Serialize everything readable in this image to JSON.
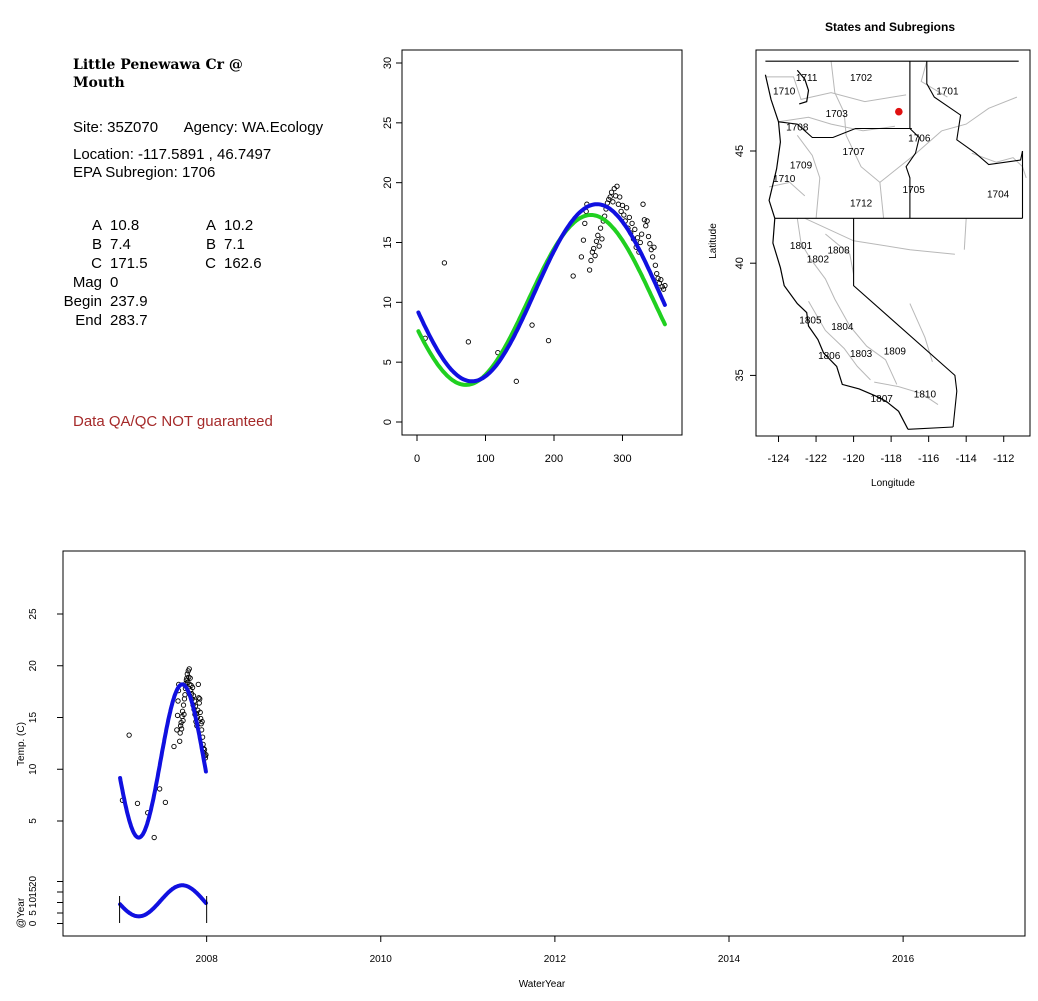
{
  "site": {
    "title_line1": "Little Penewawa Cr @",
    "title_line2": "Mouth",
    "site": "Site: 35Z070",
    "agency": "Agency: WA.Ecology",
    "location": "Location: -117.5891 , 46.7497",
    "subregion": "EPA Subregion: 1706",
    "params": [
      {
        "k1": "A",
        "v1": "10.8",
        "k2": "A",
        "v2": "10.2"
      },
      {
        "k1": "B",
        "v1": "7.4",
        "k2": "B",
        "v2": "7.1"
      },
      {
        "k1": "C",
        "v1": "171.5",
        "k2": "C",
        "v2": "162.6"
      },
      {
        "k1": "Mag",
        "v1": "0",
        "k2": "",
        "v2": ""
      },
      {
        "k1": "Begin",
        "v1": "237.9",
        "k2": "",
        "v2": ""
      },
      {
        "k1": "End",
        "v1": "283.7",
        "k2": "",
        "v2": ""
      }
    ],
    "qa_note": "Data QA/QC NOT guaranteed"
  },
  "colors": {
    "blue": "#1010e0",
    "green": "#20d020",
    "red": "#e01010",
    "qa": "#a52a2a",
    "state_line": "#000000",
    "subregion_line": "#b8b8b8"
  },
  "chart_data": [
    {
      "type": "scatter",
      "name_hint": "day-of-year",
      "xlim": [
        0,
        365
      ],
      "ylim": [
        0,
        30
      ],
      "x_ticks": [
        0,
        100,
        200,
        300
      ],
      "y_ticks": [
        0,
        5,
        10,
        15,
        20,
        25,
        30
      ],
      "curves": [
        {
          "color": "green",
          "A": 10.2,
          "B": 7.1,
          "C": 162.6
        },
        {
          "color": "blue",
          "A": 10.8,
          "B": 7.4,
          "C": 171.5
        }
      ],
      "points": [
        [
          12,
          7.0
        ],
        [
          40,
          13.3
        ],
        [
          75,
          6.7
        ],
        [
          118,
          5.8
        ],
        [
          145,
          3.4
        ],
        [
          168,
          8.1
        ],
        [
          192,
          6.8
        ],
        [
          228,
          12.2
        ],
        [
          240,
          13.8
        ],
        [
          243,
          15.2
        ],
        [
          245,
          16.6
        ],
        [
          247,
          17.6
        ],
        [
          248,
          18.2
        ],
        [
          252,
          12.7
        ],
        [
          254,
          13.5
        ],
        [
          256,
          14.2
        ],
        [
          258,
          14.5
        ],
        [
          260,
          13.9
        ],
        [
          262,
          15.1
        ],
        [
          264,
          15.6
        ],
        [
          266,
          14.7
        ],
        [
          268,
          16.2
        ],
        [
          270,
          15.3
        ],
        [
          272,
          16.8
        ],
        [
          274,
          17.2
        ],
        [
          276,
          17.8
        ],
        [
          278,
          18.3
        ],
        [
          280,
          18.6
        ],
        [
          282,
          18.8
        ],
        [
          284,
          19.2
        ],
        [
          286,
          18.4
        ],
        [
          288,
          19.5
        ],
        [
          290,
          18.9
        ],
        [
          292,
          19.7
        ],
        [
          294,
          18.2
        ],
        [
          296,
          18.8
        ],
        [
          298,
          17.6
        ],
        [
          300,
          18.1
        ],
        [
          302,
          17.3
        ],
        [
          304,
          16.8
        ],
        [
          306,
          17.9
        ],
        [
          308,
          16.2
        ],
        [
          310,
          17.1
        ],
        [
          312,
          15.8
        ],
        [
          314,
          16.6
        ],
        [
          316,
          15.3
        ],
        [
          318,
          16.1
        ],
        [
          320,
          14.6
        ],
        [
          322,
          15.4
        ],
        [
          324,
          14.2
        ],
        [
          326,
          15.0
        ],
        [
          328,
          15.7
        ],
        [
          330,
          18.2
        ],
        [
          332,
          16.9
        ],
        [
          334,
          16.4
        ],
        [
          336,
          16.8
        ],
        [
          338,
          15.5
        ],
        [
          340,
          14.9
        ],
        [
          342,
          14.4
        ],
        [
          344,
          13.8
        ],
        [
          346,
          14.6
        ],
        [
          348,
          13.1
        ],
        [
          350,
          12.4
        ],
        [
          352,
          12.0
        ],
        [
          354,
          11.6
        ],
        [
          356,
          11.9
        ],
        [
          358,
          11.3
        ],
        [
          360,
          11.1
        ],
        [
          362,
          11.4
        ]
      ]
    },
    {
      "type": "map",
      "title": "States and Subregions",
      "xlabel": "Longitude",
      "ylabel": "Latitude",
      "xlim": [
        -125.2,
        -110.6
      ],
      "ylim": [
        32.3,
        49.5
      ],
      "x_ticks": [
        -124,
        -122,
        -120,
        -118,
        -116,
        -114,
        -112
      ],
      "y_ticks": [
        35,
        40,
        45
      ],
      "site_point": [
        -117.5891,
        46.7497
      ],
      "region_labels": [
        {
          "label": "1711",
          "lon": -122.5,
          "lat": 48.3
        },
        {
          "label": "1710",
          "lon": -123.7,
          "lat": 47.7
        },
        {
          "label": "1702",
          "lon": -119.6,
          "lat": 48.3
        },
        {
          "label": "1701",
          "lon": -115.0,
          "lat": 47.7
        },
        {
          "label": "1703",
          "lon": -120.9,
          "lat": 46.7
        },
        {
          "label": "1708",
          "lon": -123.0,
          "lat": 46.1
        },
        {
          "label": "1706",
          "lon": -116.5,
          "lat": 45.6
        },
        {
          "label": "1707",
          "lon": -120.0,
          "lat": 45.0
        },
        {
          "label": "1709",
          "lon": -122.8,
          "lat": 44.4
        },
        {
          "label": "1710",
          "lon": -123.7,
          "lat": 43.8
        },
        {
          "label": "1705",
          "lon": -116.8,
          "lat": 43.3
        },
        {
          "label": "1704",
          "lon": -112.3,
          "lat": 43.1
        },
        {
          "label": "1712",
          "lon": -119.6,
          "lat": 42.7
        },
        {
          "label": "1801",
          "lon": -122.8,
          "lat": 40.8
        },
        {
          "label": "1808",
          "lon": -120.8,
          "lat": 40.6
        },
        {
          "label": "1802",
          "lon": -121.9,
          "lat": 40.2
        },
        {
          "label": "1805",
          "lon": -122.3,
          "lat": 37.5
        },
        {
          "label": "1804",
          "lon": -120.6,
          "lat": 37.2
        },
        {
          "label": "1806",
          "lon": -121.3,
          "lat": 35.9
        },
        {
          "label": "1803",
          "lon": -119.6,
          "lat": 36.0
        },
        {
          "label": "1809",
          "lon": -117.8,
          "lat": 36.1
        },
        {
          "label": "1807",
          "lon": -118.5,
          "lat": 34.0
        },
        {
          "label": "1810",
          "lon": -116.2,
          "lat": 34.2
        }
      ]
    },
    {
      "type": "line",
      "xlabel": "WaterYear",
      "ylabel": "Temp. (C)",
      "ylabel2": "@Year",
      "xlim": [
        2006.35,
        2017.4
      ],
      "x_ticks": [
        2008,
        2010,
        2012,
        2014,
        2016
      ],
      "ylim": [
        0,
        30
      ],
      "y_ticks": [
        5,
        10,
        15,
        20,
        25
      ],
      "y2_ticks": [
        0,
        5,
        10,
        15,
        20
      ],
      "year_start": 2007.0,
      "year_end": 2008.0,
      "segment_marks": [
        2007.0,
        2008.0
      ]
    }
  ]
}
